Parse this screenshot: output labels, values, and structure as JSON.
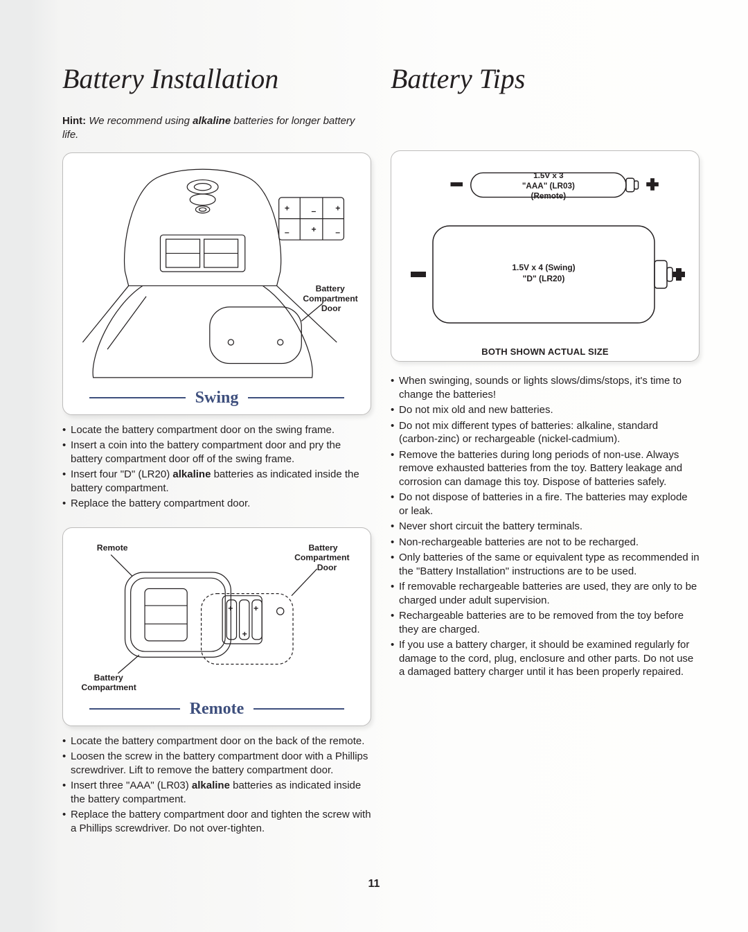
{
  "page_number": "11",
  "left": {
    "heading": "Battery Installation",
    "hint_label": "Hint:",
    "hint_mid": "  We recommend using ",
    "hint_bold": "alkaline",
    "hint_tail": " batteries for longer battery life.",
    "swing": {
      "label": "Swing",
      "callout_compartment": "Battery",
      "callout_compartment2": "Compartment",
      "callout_compartment3": "Door",
      "bullets": [
        "Locate the battery compartment door on the swing frame.",
        "Insert a coin into the battery compartment door and pry the battery compartment door off of the swing frame.",
        "Insert four \"D\" (LR20) <b>alkaline</b> batteries as indicated inside the battery compartment.",
        "Replace the battery compartment door."
      ]
    },
    "remote": {
      "label": "Remote",
      "callout_remote": "Remote",
      "callout_batt_comp": "Battery",
      "callout_batt_comp2": "Compartment",
      "callout_door": "Battery",
      "callout_door2": "Compartment",
      "callout_door3": "Door",
      "bullets": [
        "Locate the battery compartment door on the back of the remote.",
        "Loosen the screw in the battery compartment door with a Phillips screwdriver. Lift to remove the battery compartment door.",
        "Insert three \"AAA\" (LR03) <b>alkaline</b> batteries as indicated inside the battery compartment.",
        "Replace the battery compartment door and tighten the screw with a Phillips screwdriver. Do not over-tighten."
      ]
    }
  },
  "right": {
    "heading": "Battery Tips",
    "aaa_spec1": "1.5V x 3",
    "aaa_spec2": "\"AAA\" (LR03)",
    "aaa_spec3": "(Remote)",
    "d_spec1": "1.5V x 4 (Swing)",
    "d_spec2": "\"D\" (LR20)",
    "actual_size": "BOTH SHOWN ACTUAL SIZE",
    "bullets": [
      "When swinging, sounds or lights slows/dims/stops, it's time to change the batteries!",
      "Do not mix old and new batteries.",
      "Do not mix different types of batteries: alkaline, standard (carbon-zinc) or rechargeable (nickel-cadmium).",
      "Remove the batteries during long periods of non-use. Always remove exhausted batteries from the toy. Battery leakage and corrosion can damage this toy. Dispose of batteries safely.",
      "Do not dispose of batteries in a fire. The batteries may explode or leak.",
      "Never short circuit the battery terminals.",
      "Non-rechargeable batteries are not to be recharged.",
      "Only batteries of the same or equivalent type as recommended in the \"Battery Installation\" instructions are to be used.",
      "If removable rechargeable batteries are used, they are only to be charged under adult supervision.",
      "Rechargeable batteries are to be removed from the toy before they are charged.",
      "If you use a battery charger, it should be examined regularly for damage to the cord, plug, enclosure and other parts. Do not use a damaged battery charger until it has been properly repaired."
    ]
  },
  "colors": {
    "accent": "#3e4f7d",
    "stroke": "#231f20",
    "frame": "#bdbcbb"
  }
}
